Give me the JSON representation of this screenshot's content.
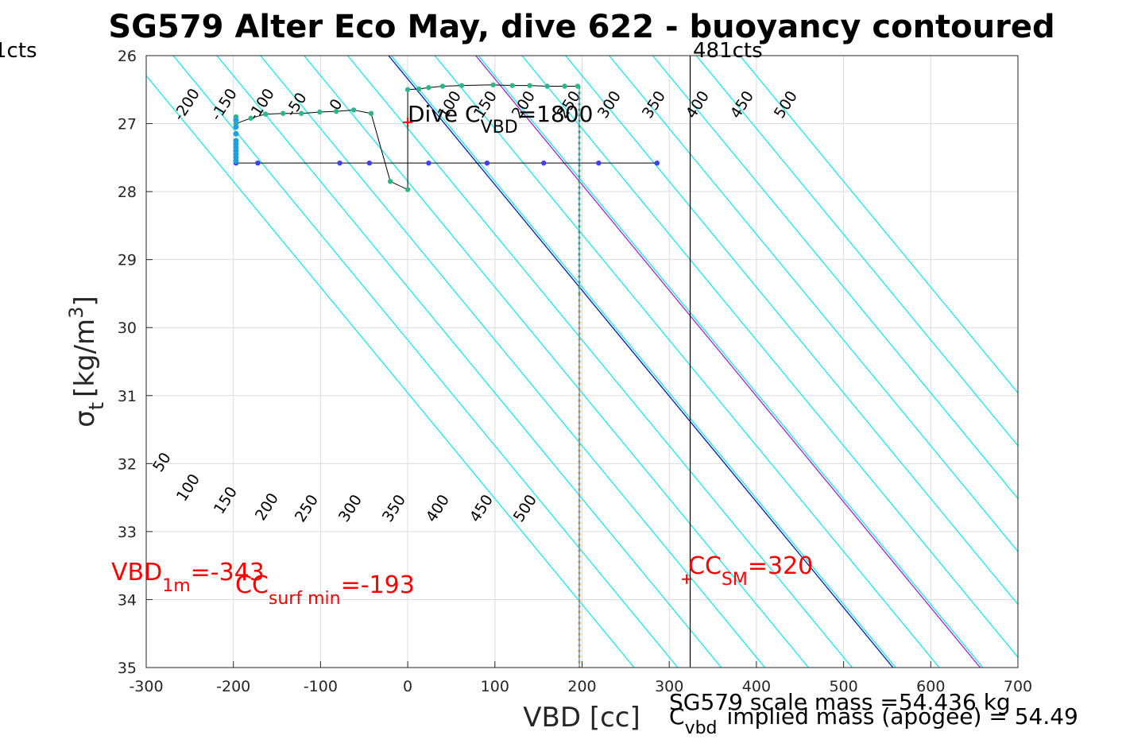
{
  "chart_data": {
    "type": "scatter",
    "title": "SG579 Alter Eco May, dive 622 - buoyancy contoured",
    "xlabel": "VBD [cc]",
    "ylabel_main": "σ",
    "ylabel_sub": "t",
    "ylabel_units": "[kg/m",
    "ylabel_sup": "3",
    "ylabel_close": "]",
    "xlim": [
      -300,
      700
    ],
    "ylim": [
      26,
      35
    ],
    "y_reversed": true,
    "grid": true,
    "x_ticks": [
      "-300",
      "-200",
      "-100",
      "0",
      "100",
      "200",
      "300",
      "400",
      "500",
      "600",
      "700"
    ],
    "y_ticks": [
      "26",
      "27",
      "28",
      "29",
      "30",
      "31",
      "32",
      "33",
      "34",
      "35"
    ],
    "buoyancy_contours": {
      "slope_cc_per_kgm3": 64.3,
      "values": [
        -200,
        -150,
        -100,
        -50,
        0,
        50,
        100,
        150,
        200,
        250,
        300,
        350,
        400,
        450,
        500
      ],
      "x_at_top": [
        -319,
        -269,
        -219,
        -169,
        -119,
        -69,
        -19,
        31,
        81,
        131,
        181,
        231,
        281,
        331,
        381
      ],
      "top_labels": [
        "-200",
        "-150",
        "-100",
        "-50",
        "0",
        "100",
        "150",
        "200",
        "250",
        "300",
        "350",
        "400",
        "450",
        "500"
      ],
      "bottom_labels": [
        "50",
        "100",
        "150",
        "200",
        "250",
        "300",
        "350",
        "400",
        "450",
        "500"
      ],
      "color": "#00f0f0"
    },
    "reference_lines": [
      {
        "name": "vbd_1m",
        "x_at_top": -22,
        "color": "#0018c8"
      },
      {
        "name": "cc_surf_min",
        "x_at_top": 78,
        "color": "#a020e0"
      }
    ],
    "vbd_pump_limit": {
      "label": "481cts",
      "x": 324
    },
    "vbd_min_limit": {
      "label": "1cts"
    },
    "dive_ascent_path": {
      "color": "#2cb78a",
      "points": [
        [
          -197,
          26.9
        ],
        [
          -197,
          27.0
        ],
        [
          -180,
          26.92
        ],
        [
          -163,
          26.86
        ],
        [
          -143,
          26.85
        ],
        [
          -122,
          26.85
        ],
        [
          -101,
          26.83
        ],
        [
          -82,
          26.82
        ],
        [
          -62,
          26.8
        ],
        [
          -42,
          26.85
        ],
        [
          -20,
          27.85
        ],
        [
          0,
          27.97
        ],
        [
          0,
          26.5
        ],
        [
          13,
          26.49
        ],
        [
          24,
          26.47
        ],
        [
          40,
          26.45
        ],
        [
          62,
          26.44
        ],
        [
          98,
          26.43
        ],
        [
          120,
          26.44
        ],
        [
          140,
          26.44
        ],
        [
          160,
          26.45
        ],
        [
          180,
          26.45
        ],
        [
          195,
          26.45
        ]
      ]
    },
    "dive_cluster": {
      "color": "#21a0e0",
      "points": [
        [
          -197,
          26.95
        ],
        [
          -197,
          27.05
        ],
        [
          -197,
          27.15
        ],
        [
          -197,
          27.25
        ],
        [
          -197,
          27.3
        ],
        [
          -197,
          27.35
        ],
        [
          -197,
          27.4
        ],
        [
          -197,
          27.45
        ],
        [
          -197,
          27.5
        ],
        [
          -197,
          27.55
        ]
      ]
    },
    "pump_samples": {
      "color": "#4040e8",
      "points": [
        [
          -197,
          27.58
        ],
        [
          -172,
          27.58
        ],
        [
          -78,
          27.58
        ],
        [
          -44,
          27.58
        ],
        [
          24,
          27.58
        ],
        [
          91,
          27.58
        ],
        [
          156,
          27.58
        ],
        [
          219,
          27.58
        ],
        [
          286,
          27.58
        ]
      ]
    },
    "green_vertical": {
      "x": 195,
      "y_from": 26.45,
      "y_to": 29.5,
      "color": "#44c040"
    },
    "orange_vertical": {
      "x": 195,
      "y_from": 29.5,
      "y_to": 35,
      "color": "#f0b020"
    },
    "annotations": {
      "dive_c_vbd": {
        "prefix": "Dive C",
        "sub": "VBD",
        "suffix": "=1800",
        "marker_x": 0,
        "marker_y": 26.98
      },
      "vbd_1m": {
        "prefix": "VBD",
        "sub": "1m",
        "suffix": "=-343"
      },
      "cc_surf_min": {
        "prefix": "CC",
        "sub": "surf min",
        "suffix": "=-193"
      },
      "cc_sm": {
        "prefix": "CC",
        "sub": "SM",
        "suffix": "=320",
        "marker_x": 320,
        "marker_y": 33.7
      },
      "scale_mass": "SG579 scale mass =54.436 kg",
      "implied_mass_prefix": "C",
      "implied_mass_sub": "vbd",
      "implied_mass_suffix": "implied mass (apogee) = 54.49"
    },
    "annotation_color": "#ff0000"
  }
}
